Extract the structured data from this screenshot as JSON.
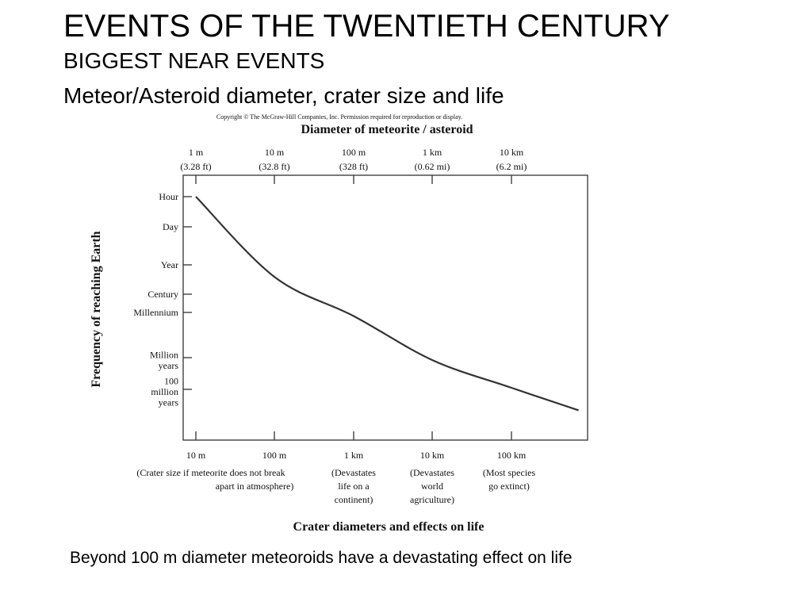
{
  "slide": {
    "title": "EVENTS OF THE TWENTIETH CENTURY",
    "subtitle1": "BIGGEST NEAR EVENTS",
    "subtitle2": "Meteor/Asteroid diameter, crater size and life",
    "caption": "Beyond 100 m diameter meteoroids have a devastating effect on life"
  },
  "chart_data": {
    "type": "line",
    "copyright": "Copyright © The McGraw-Hill Companies, Inc. Permission required for reproduction or display.",
    "top_axis": {
      "label": "Diameter of meteorite / asteroid",
      "ticks": [
        {
          "line1": "1 m",
          "line2": "(3.28 ft)"
        },
        {
          "line1": "10 m",
          "line2": "(32.8 ft)"
        },
        {
          "line1": "100 m",
          "line2": "(328 ft)"
        },
        {
          "line1": "1 km",
          "line2": "(0.62 mi)"
        },
        {
          "line1": "10 km",
          "line2": "(6.2 mi)"
        }
      ]
    },
    "bottom_axis": {
      "label": "Crater diameters and effects on life",
      "ticks": [
        "10 m",
        "100 m",
        "1 km",
        "10 km",
        "100 km"
      ],
      "notes": [
        {
          "lines": [
            "(Crater size if meteorite does not break",
            "apart in atmosphere)"
          ]
        },
        {
          "lines": [
            "(Devastates",
            "life on a",
            "continent)"
          ]
        },
        {
          "lines": [
            "(Devastates",
            "world",
            "agriculture)"
          ]
        },
        {
          "lines": [
            "(Most species",
            "go extinct)"
          ]
        }
      ]
    },
    "y_axis": {
      "label": "Frequency of reaching Earth",
      "ticks": [
        {
          "lines": [
            "Hour"
          ]
        },
        {
          "lines": [
            "Day"
          ]
        },
        {
          "lines": [
            "Year"
          ]
        },
        {
          "lines": [
            "Century"
          ]
        },
        {
          "lines": [
            "Millennium"
          ]
        },
        {
          "lines": [
            "Million",
            "years"
          ]
        },
        {
          "lines": [
            "100",
            "million",
            "years"
          ]
        }
      ]
    },
    "series": [
      {
        "name": "",
        "note": "x in decades of meteoroid diameter above 1 m; y in tick steps downward from Hour",
        "points": [
          [
            0,
            0
          ],
          [
            1,
            2.42
          ],
          [
            2,
            4.08
          ],
          [
            3,
            5.08
          ],
          [
            4,
            5.95
          ],
          [
            4.85,
            6.66
          ]
        ]
      }
    ],
    "grid": false,
    "legend": "none"
  }
}
